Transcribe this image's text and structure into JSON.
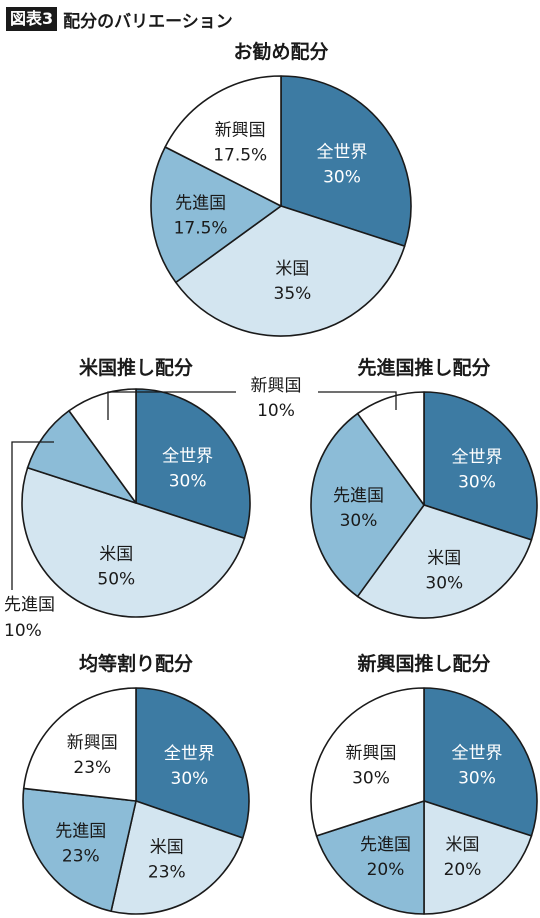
{
  "figure": {
    "badge": "図表3",
    "title": "配分のバリエーション"
  },
  "colors": {
    "全世界": "#3d7ba3",
    "米国": "#d3e5f0",
    "先進国": "#8cbcd7",
    "新興国": "#ffffff",
    "outline": "#1a1a1a",
    "text_dark": "#1a1a1a",
    "text_light": "#ffffff"
  },
  "chart_data": [
    {
      "type": "pie",
      "title": "お勧め配分",
      "slices": [
        {
          "label": "全世界",
          "value": 30,
          "value_label": "30%"
        },
        {
          "label": "米国",
          "value": 35,
          "value_label": "35%"
        },
        {
          "label": "先進国",
          "value": 17.5,
          "value_label": "17.5%"
        },
        {
          "label": "新興国",
          "value": 17.5,
          "value_label": "17.5%"
        }
      ]
    },
    {
      "type": "pie",
      "title": "米国推し配分",
      "slices": [
        {
          "label": "全世界",
          "value": 30,
          "value_label": "30%"
        },
        {
          "label": "米国",
          "value": 50,
          "value_label": "50%"
        },
        {
          "label": "先進国",
          "value": 10,
          "value_label": "10%",
          "callout": true
        },
        {
          "label": "新興国",
          "value": 10,
          "value_label": "10%",
          "callout": true
        }
      ]
    },
    {
      "type": "pie",
      "title": "先進国推し配分",
      "slices": [
        {
          "label": "全世界",
          "value": 30,
          "value_label": "30%"
        },
        {
          "label": "米国",
          "value": 30,
          "value_label": "30%"
        },
        {
          "label": "先進国",
          "value": 30,
          "value_label": "30%"
        },
        {
          "label": "新興国",
          "value": 10,
          "value_label": "10%",
          "callout": true
        }
      ]
    },
    {
      "type": "pie",
      "title": "均等割り配分",
      "slices": [
        {
          "label": "全世界",
          "value": 30,
          "value_label": "30%"
        },
        {
          "label": "米国",
          "value": 23,
          "value_label": "23%"
        },
        {
          "label": "先進国",
          "value": 23,
          "value_label": "23%"
        },
        {
          "label": "新興国",
          "value": 23,
          "value_label": "23%"
        }
      ]
    },
    {
      "type": "pie",
      "title": "新興国推し配分",
      "slices": [
        {
          "label": "全世界",
          "value": 30,
          "value_label": "30%"
        },
        {
          "label": "米国",
          "value": 20,
          "value_label": "20%"
        },
        {
          "label": "先進国",
          "value": 20,
          "value_label": "20%"
        },
        {
          "label": "新興国",
          "value": 30,
          "value_label": "30%"
        }
      ]
    }
  ]
}
